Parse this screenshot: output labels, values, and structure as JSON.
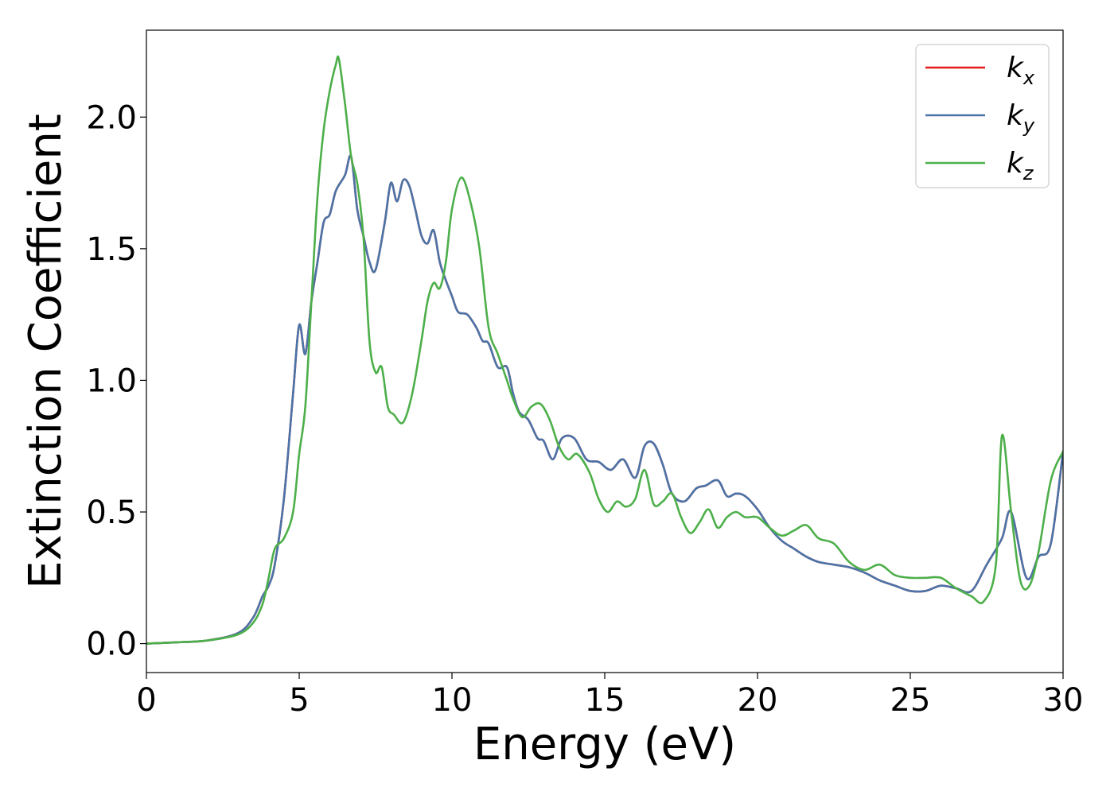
{
  "chart_data": {
    "type": "line",
    "title": "",
    "xlabel": "Energy (eV)",
    "ylabel": "Extinction Coefficient",
    "xlim": [
      0,
      30
    ],
    "ylim": [
      -0.11,
      2.33
    ],
    "xticks": [
      0,
      5,
      10,
      15,
      20,
      25,
      30
    ],
    "xtick_labels": [
      "0",
      "5",
      "10",
      "15",
      "20",
      "25",
      "30"
    ],
    "yticks": [
      0.0,
      0.5,
      1.0,
      1.5,
      2.0
    ],
    "ytick_labels": [
      "0.0",
      "0.5",
      "1.0",
      "1.5",
      "2.0"
    ],
    "grid": false,
    "legend_position": "top-right",
    "series": [
      {
        "name": "k",
        "sub": "x",
        "color": "#e41a1c",
        "x": [
          0,
          1,
          2,
          3,
          3.5,
          3.8,
          4,
          4.2,
          4.5,
          4.8,
          5,
          5.2,
          5.4,
          5.6,
          5.8,
          6,
          6.2,
          6.5,
          6.7,
          6.9,
          7.1,
          7.3,
          7.5,
          7.8,
          8,
          8.2,
          8.4,
          8.6,
          8.8,
          9,
          9.2,
          9.4,
          9.6,
          9.8,
          10,
          10.2,
          10.5,
          10.8,
          11,
          11.2,
          11.5,
          11.8,
          12,
          12.2,
          12.5,
          12.8,
          13,
          13.3,
          13.6,
          14,
          14.4,
          14.8,
          15.2,
          15.6,
          16,
          16.3,
          16.6,
          16.9,
          17.2,
          17.6,
          18,
          18.3,
          18.7,
          19,
          19.3,
          19.6,
          20,
          20.4,
          20.8,
          21.2,
          21.6,
          22,
          22.5,
          23,
          23.5,
          24,
          24.5,
          25,
          25.5,
          26,
          26.5,
          27,
          27.5,
          28,
          28.3,
          28.8,
          29.2,
          29.6,
          30
        ],
        "y": [
          0,
          0.005,
          0.012,
          0.04,
          0.1,
          0.18,
          0.22,
          0.3,
          0.55,
          0.95,
          1.21,
          1.1,
          1.3,
          1.45,
          1.6,
          1.63,
          1.72,
          1.78,
          1.85,
          1.65,
          1.55,
          1.45,
          1.42,
          1.6,
          1.75,
          1.68,
          1.76,
          1.74,
          1.65,
          1.55,
          1.52,
          1.57,
          1.45,
          1.38,
          1.32,
          1.26,
          1.25,
          1.2,
          1.15,
          1.14,
          1.05,
          1.05,
          0.95,
          0.88,
          0.85,
          0.78,
          0.77,
          0.7,
          0.78,
          0.78,
          0.7,
          0.69,
          0.66,
          0.7,
          0.63,
          0.75,
          0.76,
          0.68,
          0.57,
          0.54,
          0.59,
          0.6,
          0.62,
          0.56,
          0.57,
          0.56,
          0.51,
          0.44,
          0.39,
          0.36,
          0.33,
          0.31,
          0.3,
          0.29,
          0.27,
          0.24,
          0.22,
          0.2,
          0.2,
          0.22,
          0.21,
          0.2,
          0.3,
          0.4,
          0.5,
          0.25,
          0.33,
          0.38,
          0.73
        ]
      },
      {
        "name": "k",
        "sub": "y",
        "color": "#4a74a8",
        "x": [
          0,
          1,
          2,
          3,
          3.5,
          3.8,
          4,
          4.2,
          4.5,
          4.8,
          5,
          5.2,
          5.4,
          5.6,
          5.8,
          6,
          6.2,
          6.5,
          6.7,
          6.9,
          7.1,
          7.3,
          7.5,
          7.8,
          8,
          8.2,
          8.4,
          8.6,
          8.8,
          9,
          9.2,
          9.4,
          9.6,
          9.8,
          10,
          10.2,
          10.5,
          10.8,
          11,
          11.2,
          11.5,
          11.8,
          12,
          12.2,
          12.5,
          12.8,
          13,
          13.3,
          13.6,
          14,
          14.4,
          14.8,
          15.2,
          15.6,
          16,
          16.3,
          16.6,
          16.9,
          17.2,
          17.6,
          18,
          18.3,
          18.7,
          19,
          19.3,
          19.6,
          20,
          20.4,
          20.8,
          21.2,
          21.6,
          22,
          22.5,
          23,
          23.5,
          24,
          24.5,
          25,
          25.5,
          26,
          26.5,
          27,
          27.5,
          28,
          28.3,
          28.8,
          29.2,
          29.6,
          30
        ],
        "y": [
          0,
          0.005,
          0.012,
          0.04,
          0.1,
          0.18,
          0.22,
          0.3,
          0.55,
          0.95,
          1.21,
          1.1,
          1.3,
          1.45,
          1.6,
          1.63,
          1.72,
          1.78,
          1.85,
          1.65,
          1.55,
          1.45,
          1.42,
          1.6,
          1.75,
          1.68,
          1.76,
          1.74,
          1.65,
          1.55,
          1.52,
          1.57,
          1.45,
          1.38,
          1.32,
          1.26,
          1.25,
          1.2,
          1.15,
          1.14,
          1.05,
          1.05,
          0.95,
          0.88,
          0.85,
          0.78,
          0.77,
          0.7,
          0.78,
          0.78,
          0.7,
          0.69,
          0.66,
          0.7,
          0.63,
          0.75,
          0.76,
          0.68,
          0.57,
          0.54,
          0.59,
          0.6,
          0.62,
          0.56,
          0.57,
          0.56,
          0.51,
          0.44,
          0.39,
          0.36,
          0.33,
          0.31,
          0.3,
          0.29,
          0.27,
          0.24,
          0.22,
          0.2,
          0.2,
          0.22,
          0.21,
          0.2,
          0.3,
          0.4,
          0.5,
          0.25,
          0.33,
          0.38,
          0.73
        ]
      },
      {
        "name": "k",
        "sub": "z",
        "color": "#4daf4a",
        "x": [
          0,
          1,
          2,
          3,
          3.5,
          3.8,
          4,
          4.2,
          4.5,
          4.8,
          5,
          5.2,
          5.4,
          5.6,
          5.8,
          6,
          6.2,
          6.3,
          6.5,
          6.7,
          6.9,
          7.1,
          7.3,
          7.5,
          7.7,
          7.9,
          8.1,
          8.4,
          8.7,
          9,
          9.2,
          9.4,
          9.6,
          9.8,
          10,
          10.3,
          10.6,
          10.9,
          11.2,
          11.5,
          11.8,
          12,
          12.3,
          12.6,
          12.9,
          13.2,
          13.5,
          13.8,
          14.1,
          14.5,
          14.8,
          15.1,
          15.4,
          15.7,
          16,
          16.3,
          16.6,
          16.9,
          17.2,
          17.5,
          17.8,
          18.1,
          18.4,
          18.7,
          19,
          19.3,
          19.6,
          20,
          20.4,
          20.8,
          21.2,
          21.6,
          22,
          22.5,
          23,
          23.5,
          24,
          24.5,
          25,
          25.5,
          26,
          26.5,
          27,
          27.4,
          27.8,
          28,
          28.3,
          28.6,
          28.9,
          29.2,
          29.6,
          30
        ],
        "y": [
          0,
          0.005,
          0.012,
          0.035,
          0.08,
          0.15,
          0.25,
          0.36,
          0.4,
          0.5,
          0.72,
          0.9,
          1.3,
          1.7,
          1.95,
          2.1,
          2.2,
          2.22,
          2.05,
          1.85,
          1.75,
          1.55,
          1.15,
          1.03,
          1.05,
          0.9,
          0.87,
          0.84,
          0.95,
          1.15,
          1.3,
          1.37,
          1.35,
          1.45,
          1.65,
          1.77,
          1.68,
          1.5,
          1.2,
          1.1,
          1.0,
          0.93,
          0.86,
          0.9,
          0.91,
          0.85,
          0.75,
          0.7,
          0.72,
          0.65,
          0.55,
          0.5,
          0.54,
          0.52,
          0.55,
          0.66,
          0.53,
          0.54,
          0.57,
          0.48,
          0.42,
          0.46,
          0.51,
          0.44,
          0.48,
          0.5,
          0.48,
          0.48,
          0.44,
          0.41,
          0.43,
          0.45,
          0.4,
          0.38,
          0.31,
          0.28,
          0.3,
          0.26,
          0.25,
          0.25,
          0.25,
          0.21,
          0.18,
          0.16,
          0.3,
          0.79,
          0.5,
          0.24,
          0.22,
          0.35,
          0.62,
          0.73
        ]
      }
    ]
  }
}
